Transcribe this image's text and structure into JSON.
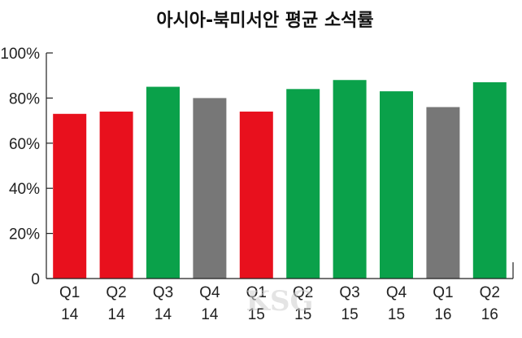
{
  "chart_data": {
    "type": "bar",
    "title": "아시아-북미서안 평균 소석률",
    "xlabel": "",
    "ylabel": "",
    "ylim": [
      0,
      100
    ],
    "yticks": [
      "0",
      "20%",
      "40%",
      "60%",
      "80%",
      "100%"
    ],
    "categories": [
      [
        "Q1",
        "14"
      ],
      [
        "Q2",
        "14"
      ],
      [
        "Q3",
        "14"
      ],
      [
        "Q4",
        "14"
      ],
      [
        "Q1",
        "15"
      ],
      [
        "Q2",
        "15"
      ],
      [
        "Q3",
        "15"
      ],
      [
        "Q4",
        "15"
      ],
      [
        "Q1",
        "16"
      ],
      [
        "Q2",
        "16"
      ]
    ],
    "values": [
      73,
      74,
      85,
      80,
      74,
      84,
      88,
      83,
      76,
      87
    ],
    "bar_colors": [
      "#e8101d",
      "#e8101d",
      "#0aa14a",
      "#777777",
      "#e8101d",
      "#0aa14a",
      "#0aa14a",
      "#0aa14a",
      "#777777",
      "#0aa14a"
    ],
    "grid": false,
    "watermark": "KSG"
  }
}
